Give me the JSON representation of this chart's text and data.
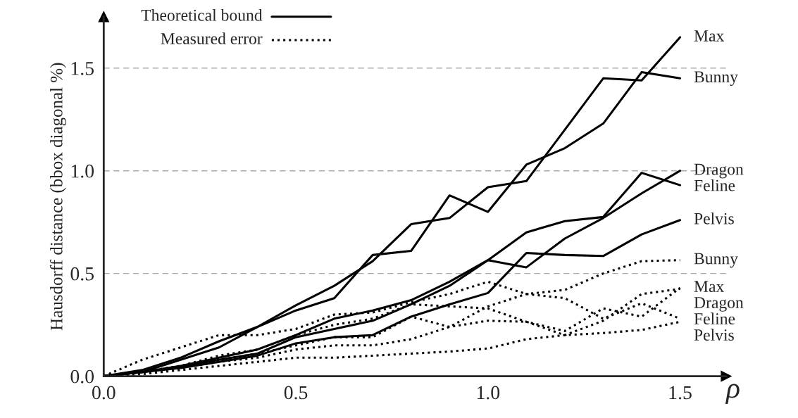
{
  "chart_data": {
    "type": "line",
    "xlabel": "ρ",
    "ylabel": "Hausdorff distance (bbox diagonal %)",
    "x": [
      0,
      0.1,
      0.2,
      0.3,
      0.4,
      0.5,
      0.6,
      0.7,
      0.8,
      0.9,
      1.0,
      1.1,
      1.2,
      1.3,
      1.4,
      1.5
    ],
    "series": [
      {
        "name": "Max",
        "color": "#000000",
        "line_style": "solid",
        "values": [
          0,
          0.03,
          0.09,
          0.17,
          0.24,
          0.345,
          0.44,
          0.56,
          0.74,
          0.77,
          0.92,
          0.95,
          1.2,
          1.45,
          1.44,
          1.65
        ]
      },
      {
        "name": "Bunny",
        "color": "#000000",
        "line_style": "solid",
        "values": [
          0,
          0.02,
          0.08,
          0.14,
          0.24,
          0.32,
          0.38,
          0.59,
          0.61,
          0.88,
          0.8,
          1.03,
          1.11,
          1.23,
          1.48,
          1.45
        ]
      },
      {
        "name": "Dragon",
        "color": "#000000",
        "line_style": "solid",
        "values": [
          0,
          0.02,
          0.05,
          0.09,
          0.13,
          0.2,
          0.28,
          0.32,
          0.37,
          0.46,
          0.565,
          0.53,
          0.67,
          0.77,
          0.89,
          1.0
        ]
      },
      {
        "name": "Feline",
        "color": "#000000",
        "line_style": "solid",
        "values": [
          0,
          0.02,
          0.045,
          0.08,
          0.11,
          0.19,
          0.23,
          0.27,
          0.35,
          0.44,
          0.565,
          0.7,
          0.755,
          0.775,
          0.99,
          0.93
        ]
      },
      {
        "name": "Pelvis",
        "color": "#000000",
        "line_style": "solid",
        "values": [
          0,
          0.02,
          0.04,
          0.07,
          0.1,
          0.16,
          0.19,
          0.2,
          0.29,
          0.35,
          0.405,
          0.6,
          0.59,
          0.585,
          0.69,
          0.76
        ]
      },
      {
        "name": "Bunny",
        "color": "#000000",
        "line_style": "dotted",
        "values": [
          0,
          0.02,
          0.04,
          0.07,
          0.09,
          0.13,
          0.15,
          0.15,
          0.18,
          0.24,
          0.34,
          0.4,
          0.42,
          0.5,
          0.56,
          0.565
        ]
      },
      {
        "name": "Max",
        "color": "#000000",
        "line_style": "dotted",
        "values": [
          0,
          0.02,
          0.05,
          0.1,
          0.13,
          0.2,
          0.25,
          0.28,
          0.35,
          0.34,
          0.33,
          0.265,
          0.22,
          0.33,
          0.29,
          0.43
        ]
      },
      {
        "name": "Dragon",
        "color": "#000000",
        "line_style": "dotted",
        "values": [
          0,
          0.02,
          0.05,
          0.08,
          0.11,
          0.15,
          0.19,
          0.19,
          0.29,
          0.24,
          0.27,
          0.265,
          0.2,
          0.27,
          0.4,
          0.425
        ]
      },
      {
        "name": "Feline",
        "color": "#000000",
        "line_style": "dotted",
        "values": [
          0,
          0.08,
          0.14,
          0.2,
          0.2,
          0.23,
          0.3,
          0.31,
          0.36,
          0.4,
          0.46,
          0.4,
          0.38,
          0.28,
          0.355,
          0.28
        ]
      },
      {
        "name": "Pelvis",
        "color": "#000000",
        "line_style": "dotted",
        "values": [
          0,
          0.01,
          0.03,
          0.05,
          0.07,
          0.09,
          0.09,
          0.1,
          0.11,
          0.12,
          0.135,
          0.18,
          0.2,
          0.21,
          0.225,
          0.265
        ]
      }
    ],
    "annotations": [
      "Theoretical bound",
      "Measured error"
    ],
    "xlim": [
      0,
      1.62
    ],
    "ylim": [
      0,
      1.75
    ],
    "xticks": [
      {
        "value": 0,
        "label": "0.0"
      },
      {
        "value": 0.5,
        "label": "0.5"
      },
      {
        "value": 1.0,
        "label": "1.0"
      },
      {
        "value": 1.5,
        "label": "1.5"
      }
    ],
    "yticks": [
      {
        "value": 0,
        "label": "0.0"
      },
      {
        "value": 0.5,
        "label": "0.5"
      },
      {
        "value": 1.0,
        "label": "1.0"
      },
      {
        "value": 1.5,
        "label": "1.5"
      }
    ],
    "grid": "y",
    "legend": "right",
    "marker": "none"
  }
}
